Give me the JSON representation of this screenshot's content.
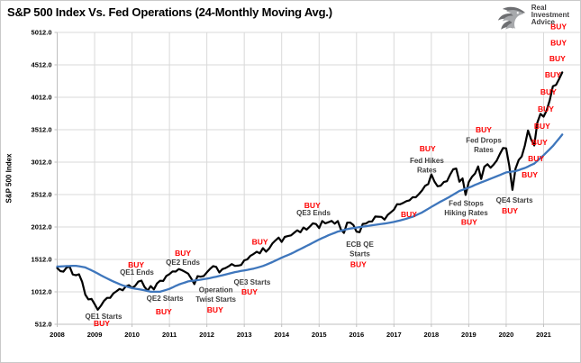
{
  "header": {
    "title": "S&P 500 Index Vs. Fed Operations (24-Monthly Moving Avg.)",
    "logo": {
      "icon": "eagle-icon",
      "lines": [
        "Real",
        "Investment",
        "Advice"
      ]
    }
  },
  "chart_data": {
    "type": "line",
    "title": "S&P 500 Index Vs. Fed Operations (24-Monthly Moving Avg.)",
    "xlabel": "",
    "ylabel": "S&P 500 Index",
    "x_range": [
      2008,
      2022
    ],
    "y_range": [
      512,
      5012
    ],
    "grid": true,
    "legend": "none",
    "x_tick_labels": [
      "2008",
      "2009",
      "2010",
      "2011",
      "2012",
      "2013",
      "2014",
      "2015",
      "2016",
      "2017",
      "2018",
      "2019",
      "2020",
      "2021"
    ],
    "x_tick_values": [
      2008,
      2009,
      2010,
      2011,
      2012,
      2013,
      2014,
      2015,
      2016,
      2017,
      2018,
      2019,
      2020,
      2021
    ],
    "y_tick_labels": [
      "512.0",
      "1012.0",
      "1512.0",
      "2012.0",
      "2512.0",
      "3012.0",
      "3512.0",
      "4012.0",
      "4512.0",
      "5012.0"
    ],
    "y_tick_values": [
      512,
      1012,
      1512,
      2012,
      2512,
      3012,
      3512,
      4012,
      4512,
      5012
    ],
    "x_start": 2008,
    "points_per_year": 12,
    "colors": {
      "sp500_line": "#000000",
      "ma_line": "#3E76BC",
      "buy_label": "#FE0000",
      "annotation_text": "#3F3F3F",
      "grid": "#D9D9D9",
      "axis": "#BFBFBF",
      "tick_text": "#000000"
    },
    "series": [
      {
        "name": "S&P 500 Index",
        "color_key": "sp500_line",
        "width": 2.2,
        "values": [
          1378,
          1331,
          1323,
          1386,
          1400,
          1280,
          1267,
          1283,
          1166,
          969,
          896,
          903,
          825,
          735,
          797,
          872,
          919,
          919,
          987,
          1020,
          1057,
          1036,
          1095,
          1115,
          1073,
          1104,
          1169,
          1186,
          1089,
          1030,
          1101,
          1049,
          1141,
          1183,
          1180,
          1257,
          1286,
          1327,
          1325,
          1363,
          1345,
          1320,
          1292,
          1218,
          1131,
          1253,
          1246,
          1257,
          1312,
          1365,
          1408,
          1397,
          1310,
          1362,
          1379,
          1406,
          1440,
          1412,
          1416,
          1426,
          1498,
          1514,
          1569,
          1597,
          1630,
          1606,
          1685,
          1632,
          1681,
          1756,
          1805,
          1848,
          1782,
          1859,
          1872,
          1883,
          1923,
          1960,
          1930,
          2003,
          1972,
          2018,
          2067,
          2058,
          1995,
          2104,
          2067,
          2085,
          2107,
          2063,
          2103,
          1972,
          1920,
          2079,
          2080,
          2043,
          1940,
          1932,
          2059,
          2065,
          2096,
          2098,
          2173,
          2170,
          2168,
          2126,
          2198,
          2238,
          2278,
          2363,
          2362,
          2384,
          2411,
          2423,
          2470,
          2471,
          2519,
          2575,
          2647,
          2673,
          2823,
          2713,
          2640,
          2648,
          2705,
          2718,
          2816,
          2901,
          2913,
          2711,
          2760,
          2506,
          2704,
          2784,
          2834,
          2945,
          2752,
          2941,
          2980,
          2926,
          2976,
          3037,
          3140,
          3230,
          3225,
          2954,
          2584,
          2912,
          3044,
          3100,
          3271,
          3500,
          3363,
          3269,
          3621,
          3756,
          3714,
          3811,
          3972,
          4181,
          4204,
          4297,
          4395
        ]
      },
      {
        "name": "24-Monthly Moving Avg.",
        "color_key": "ma_line",
        "width": 2.3,
        "values": [
          1402,
          1404,
          1407,
          1409,
          1411,
          1413,
          1414,
          1406,
          1398,
          1389,
          1366,
          1344,
          1321,
          1295,
          1268,
          1242,
          1219,
          1195,
          1172,
          1152,
          1132,
          1112,
          1098,
          1083,
          1069,
          1061,
          1053,
          1045,
          1035,
          1024,
          1014,
          1014,
          1013,
          1013,
          1028,
          1043,
          1058,
          1080,
          1103,
          1125,
          1141,
          1157,
          1173,
          1180,
          1186,
          1193,
          1200,
          1208,
          1215,
          1225,
          1235,
          1245,
          1256,
          1268,
          1279,
          1291,
          1304,
          1316,
          1325,
          1334,
          1342,
          1351,
          1361,
          1370,
          1383,
          1397,
          1410,
          1430,
          1451,
          1471,
          1494,
          1516,
          1539,
          1559,
          1579,
          1599,
          1623,
          1648,
          1672,
          1696,
          1720,
          1744,
          1769,
          1794,
          1819,
          1841,
          1862,
          1884,
          1903,
          1922,
          1941,
          1953,
          1966,
          1978,
          1987,
          1995,
          2004,
          2010,
          2017,
          2023,
          2031,
          2038,
          2046,
          2052,
          2059,
          2065,
          2073,
          2082,
          2090,
          2102,
          2114,
          2126,
          2140,
          2155,
          2169,
          2191,
          2213,
          2235,
          2264,
          2293,
          2322,
          2349,
          2376,
          2403,
          2429,
          2455,
          2481,
          2510,
          2538,
          2567,
          2584,
          2602,
          2619,
          2639,
          2660,
          2680,
          2699,
          2718,
          2737,
          2756,
          2775,
          2794,
          2814,
          2834,
          2854,
          2860,
          2867,
          2873,
          2889,
          2906,
          2922,
          2944,
          2967,
          2989,
          3032,
          3076,
          3119,
          3166,
          3214,
          3261,
          3320,
          3378,
          3437
        ]
      }
    ],
    "buy_label_text": "BUY",
    "annotations": [
      {
        "lines": [
          "QE1 Starts"
        ],
        "x": 2009.24,
        "y": 640,
        "buy": {
          "x": 2009.19,
          "y": 525
        }
      },
      {
        "lines": [
          "QE1 Ends"
        ],
        "x": 2010.13,
        "y": 1320,
        "buy": {
          "x": 2010.11,
          "y": 1430
        }
      },
      {
        "lines": [
          "QE2 Starts"
        ],
        "x": 2010.88,
        "y": 915,
        "buy": {
          "x": 2010.85,
          "y": 705
        }
      },
      {
        "lines": [
          "QE2 Ends"
        ],
        "x": 2011.36,
        "y": 1470,
        "buy": {
          "x": 2011.36,
          "y": 1610
        }
      },
      {
        "lines": [
          "Operation",
          "Twist Starts"
        ],
        "x": 2012.24,
        "y": 977,
        "buy": {
          "x": 2012.22,
          "y": 734
        }
      },
      {
        "lines": [
          "QE3 Starts"
        ],
        "x": 2013.21,
        "y": 1165,
        "buy": {
          "x": 2013.14,
          "y": 1012
        }
      },
      {
        "lines": [
          "QE3 Ends"
        ],
        "x": 2014.85,
        "y": 2234,
        "buy": {
          "x": 2014.82,
          "y": 2345
        }
      },
      {
        "lines": [
          "ECB QE",
          "Starts"
        ],
        "x": 2016.09,
        "y": 1672,
        "buy": {
          "x": 2016.05,
          "y": 1436
        }
      },
      {
        "lines": [
          "Fed Hikes",
          "Rates"
        ],
        "x": 2017.88,
        "y": 2970,
        "buy": {
          "x": 2017.9,
          "y": 3220
        }
      },
      {
        "lines": [
          "Fed Stops",
          "Hiking Rates"
        ],
        "x": 2018.93,
        "y": 2304,
        "buy": {
          "x": 2019.01,
          "y": 2088
        }
      },
      {
        "lines": [
          "Fed Drops",
          "Rates"
        ],
        "x": 2019.4,
        "y": 3276,
        "buy": {
          "x": 2019.4,
          "y": 3512
        }
      },
      {
        "lines": [
          "QE4 Starts"
        ],
        "x": 2020.22,
        "y": 2430,
        "buy": {
          "x": 2020.1,
          "y": 2262
        }
      }
    ],
    "standalone_buys": [
      {
        "x": 2013.42,
        "y": 1783
      },
      {
        "x": 2017.4,
        "y": 2206
      },
      {
        "x": 2020.63,
        "y": 2817
      },
      {
        "x": 2020.8,
        "y": 3067
      },
      {
        "x": 2020.89,
        "y": 3317
      },
      {
        "x": 2020.96,
        "y": 3567
      },
      {
        "x": 2021.06,
        "y": 3831
      },
      {
        "x": 2021.13,
        "y": 4095
      },
      {
        "x": 2021.25,
        "y": 4359
      },
      {
        "x": 2021.37,
        "y": 4609
      },
      {
        "x": 2021.4,
        "y": 4852
      },
      {
        "x": 2021.4,
        "y": 5103
      }
    ]
  }
}
